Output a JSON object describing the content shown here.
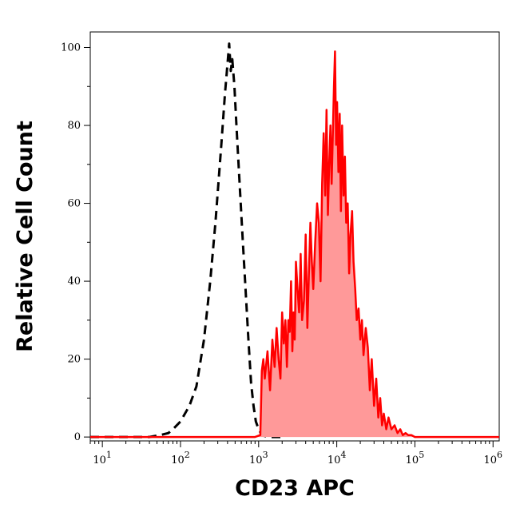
{
  "chart_data": {
    "type": "area",
    "title": "",
    "xlabel": "CD23 APC",
    "ylabel": "Relative Cell Count",
    "x_scale": "log",
    "xlim": [
      7,
      1200000
    ],
    "ylim": [
      -1,
      104
    ],
    "grid": false,
    "legend": "none",
    "x_tick_labels": [
      {
        "value": 10,
        "base": "10",
        "exp": "1"
      },
      {
        "value": 100,
        "base": "10",
        "exp": "2"
      },
      {
        "value": 1000,
        "base": "10",
        "exp": "3"
      },
      {
        "value": 10000,
        "base": "10",
        "exp": "4"
      },
      {
        "value": 100000,
        "base": "10",
        "exp": "5"
      },
      {
        "value": 1000000,
        "base": "10",
        "exp": "6"
      }
    ],
    "y_ticks": [
      0,
      20,
      40,
      60,
      80,
      100
    ],
    "y_tick_labels": [
      "0",
      "20",
      "40",
      "60",
      "80",
      "100"
    ],
    "series": [
      {
        "style": "dashed-black-line",
        "color": "#000000",
        "x": [
          7,
          40,
          55,
          70,
          80,
          100,
          130,
          160,
          200,
          240,
          280,
          330,
          370,
          400,
          420,
          440,
          460,
          490,
          520,
          560,
          620,
          680,
          740,
          800,
          860,
          920,
          1000,
          1100,
          1300,
          2000
        ],
        "y": [
          0,
          0,
          0.5,
          1,
          2,
          4,
          8,
          13,
          25,
          40,
          55,
          74,
          88,
          96,
          101,
          94,
          97,
          90,
          80,
          68,
          52,
          38,
          25,
          14,
          8,
          4,
          2,
          0.5,
          0,
          0
        ]
      },
      {
        "style": "filled-red-area",
        "color": "#ff0000",
        "fill": "#ff9999",
        "x": [
          7,
          900,
          1050,
          1100,
          1150,
          1200,
          1300,
          1400,
          1500,
          1600,
          1700,
          1800,
          1900,
          2000,
          2100,
          2200,
          2300,
          2400,
          2500,
          2600,
          2700,
          2800,
          2900,
          3000,
          3150,
          3300,
          3450,
          3600,
          3800,
          4000,
          4200,
          4400,
          4600,
          4800,
          5000,
          5300,
          5600,
          5900,
          6200,
          6500,
          6800,
          7100,
          7400,
          7700,
          8000,
          8300,
          8600,
          8900,
          9200,
          9500,
          9800,
          10100,
          10500,
          10900,
          11300,
          11700,
          12200,
          12700,
          13200,
          13800,
          14400,
          15000,
          15700,
          16400,
          17200,
          18000,
          19000,
          20000,
          21000,
          22000,
          23500,
          25000,
          26500,
          28000,
          30000,
          32000,
          34000,
          36000,
          38000,
          40000,
          43000,
          46000,
          50000,
          55000,
          60000,
          65000,
          70000,
          76000,
          82000,
          90000,
          100000,
          115000,
          1200000
        ],
        "y": [
          0,
          0,
          0.5,
          17,
          20,
          15,
          22,
          12,
          25,
          18,
          28,
          20,
          15,
          32,
          24,
          30,
          18,
          30,
          27,
          40,
          22,
          32,
          25,
          45,
          38,
          32,
          47,
          30,
          35,
          52,
          28,
          42,
          55,
          45,
          38,
          50,
          60,
          55,
          40,
          65,
          78,
          62,
          84,
          57,
          70,
          80,
          65,
          78,
          90,
          99,
          75,
          86,
          68,
          83,
          58,
          80,
          62,
          72,
          55,
          60,
          42,
          52,
          58,
          45,
          38,
          30,
          33,
          25,
          30,
          21,
          28,
          23,
          12,
          20,
          8,
          15,
          5,
          10,
          3,
          6,
          2,
          5,
          2,
          3,
          1,
          2,
          0.5,
          1,
          0.5,
          0.5,
          0,
          0,
          0
        ]
      }
    ]
  }
}
